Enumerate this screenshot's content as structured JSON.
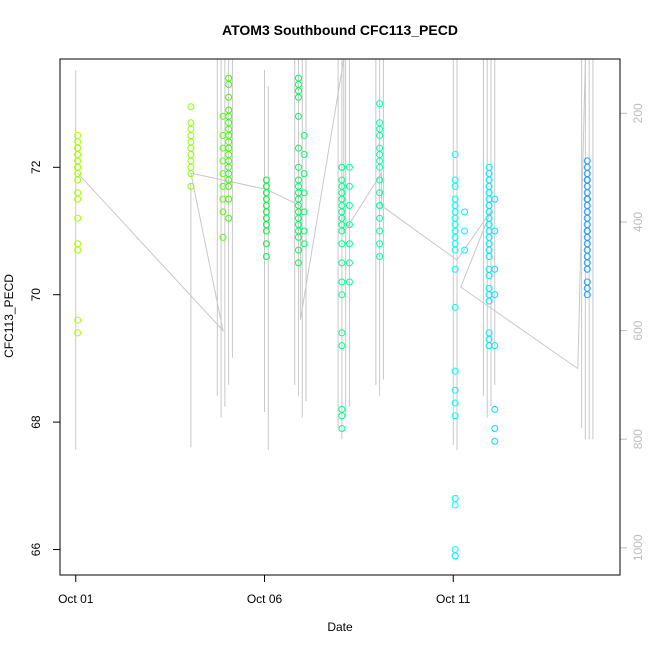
{
  "chart_data": {
    "type": "scatter",
    "title": "ATOM3 Southbound CFC113_PECD",
    "xlabel": "Date",
    "ylabel": "CFC113_PECD",
    "x_ticks": [
      "Oct 01",
      "Oct 06",
      "Oct 11"
    ],
    "y_ticks": [
      "66",
      "68",
      "70",
      "72"
    ],
    "right_ticks": [
      "200",
      "400",
      "600",
      "800",
      "1000"
    ],
    "xlim": [
      "Sep 30 14:00",
      "Oct 15 10:00"
    ],
    "ylim": [
      65.6,
      73.7
    ],
    "right_lim_inverted": [
      100,
      1050
    ],
    "right_axis_meaning": "pressure (inverted, grey)",
    "grid": false,
    "colors": {
      "point_start": "#a6ff00",
      "point_mid": "#00ff6e",
      "point_cyan": "#00ffff",
      "point_end": "#1ea0ff",
      "track": "#c8c8c8",
      "right_axis": "#bdbdbd"
    },
    "clusters": [
      {
        "x": 1.05,
        "color": "#a6ff00",
        "y": [
          72.5,
          72.4,
          72.3,
          72.3,
          72.2,
          72.2,
          72.1,
          72.1,
          72.0,
          72.0,
          71.9,
          71.8,
          71.6,
          71.5,
          71.2,
          70.8,
          70.7,
          69.6,
          69.4
        ]
      },
      {
        "x": 4.05,
        "color": "#8cff00",
        "y": [
          72.95,
          72.7,
          72.6,
          72.5,
          72.4,
          72.3,
          72.2,
          72.1,
          72.0,
          71.9,
          71.7
        ]
      },
      {
        "x": 4.9,
        "color": "#55ff00",
        "y": [
          72.8,
          72.5,
          72.3,
          72.1,
          71.9,
          71.7,
          71.5,
          71.3,
          70.9
        ]
      },
      {
        "x": 5.05,
        "color": "#3cff00",
        "y": [
          73.4,
          73.3,
          73.1,
          72.9,
          72.8,
          72.7,
          72.6,
          72.5,
          72.5,
          72.4,
          72.3,
          72.2,
          72.1,
          72.0,
          71.9,
          71.8,
          71.7,
          71.5,
          71.2
        ]
      },
      {
        "x": 6.05,
        "color": "#00ff3c",
        "y": [
          71.8,
          71.7,
          71.6,
          71.5,
          71.4,
          71.3,
          71.2,
          71.1,
          71.0,
          70.8,
          70.6
        ]
      },
      {
        "x": 6.9,
        "color": "#00ff5a",
        "y": [
          73.4,
          73.3,
          73.2,
          73.1,
          72.8,
          72.3,
          72.0,
          71.8,
          71.7,
          71.6,
          71.5,
          71.4,
          71.3,
          71.2,
          71.1,
          71.0,
          70.9,
          70.7,
          70.5
        ]
      },
      {
        "x": 7.05,
        "color": "#00ff6e",
        "y": [
          72.5,
          72.2,
          71.9,
          71.6,
          71.3,
          71.0,
          70.8
        ]
      },
      {
        "x": 8.05,
        "color": "#00ff8c",
        "y": [
          72.0,
          72.0,
          71.8,
          71.7,
          71.6,
          71.5,
          71.4,
          71.3,
          71.2,
          71.1,
          71.0,
          70.8,
          70.5,
          70.2,
          70.0,
          69.4,
          69.2,
          68.2,
          68.1,
          67.9
        ]
      },
      {
        "x": 8.25,
        "color": "#00ff96",
        "y": [
          72.0,
          71.7,
          71.4,
          71.1,
          70.8,
          70.5,
          70.2
        ]
      },
      {
        "x": 9.05,
        "color": "#00ffaa",
        "y": [
          73.0,
          72.7,
          72.6,
          72.5,
          72.3,
          72.2,
          72.1,
          72.0,
          71.8,
          71.6,
          71.4,
          71.4,
          71.2,
          71.0,
          70.8,
          70.6
        ]
      },
      {
        "x": 11.05,
        "color": "#00ffff",
        "y": [
          72.2,
          71.8,
          71.7,
          71.5,
          71.4,
          71.3,
          71.2,
          71.1,
          71.0,
          70.9,
          70.8,
          70.7,
          70.4,
          69.8,
          68.8,
          68.5,
          68.3,
          68.1,
          66.8,
          66.8,
          66.7,
          66.0,
          65.9,
          65.9
        ]
      },
      {
        "x": 11.3,
        "color": "#00f5ff",
        "y": [
          71.3,
          71.0,
          70.7
        ]
      },
      {
        "x": 11.95,
        "color": "#00eaff",
        "y": [
          72.0,
          71.9,
          71.8,
          71.7,
          71.6,
          71.5,
          71.4,
          71.3,
          71.2,
          71.1,
          71.0,
          70.9,
          70.8,
          70.7,
          70.6,
          70.4,
          70.3,
          70.1,
          70.0,
          69.9,
          69.4,
          69.3,
          69.2
        ]
      },
      {
        "x": 12.1,
        "color": "#00e0ff",
        "y": [
          71.5,
          71.0,
          70.4,
          70.0,
          69.2,
          68.2,
          67.9,
          67.7
        ]
      },
      {
        "x": 14.55,
        "color": "#1ea0ff",
        "y": [
          72.1,
          72.0,
          71.9,
          71.8,
          71.8,
          71.7,
          71.6,
          71.5,
          71.5,
          71.4,
          71.3,
          71.2,
          71.1,
          71.0,
          71.0,
          70.9,
          70.8,
          70.7,
          70.6,
          70.5,
          70.4,
          70.2,
          70.1,
          70.0
        ]
      }
    ],
    "pressure_profiles": [
      {
        "x": 1.0,
        "top": 120,
        "bottom": 820
      },
      {
        "x": 4.05,
        "top": 330,
        "bottom": 815
      },
      {
        "x": 4.75,
        "top": 100,
        "bottom": 720
      },
      {
        "x": 4.85,
        "top": 100,
        "bottom": 760
      },
      {
        "x": 4.95,
        "top": 100,
        "bottom": 740
      },
      {
        "x": 5.05,
        "top": 100,
        "bottom": 700
      },
      {
        "x": 5.15,
        "top": 100,
        "bottom": 650
      },
      {
        "x": 6.0,
        "top": 120,
        "bottom": 750
      },
      {
        "x": 6.1,
        "top": 150,
        "bottom": 820
      },
      {
        "x": 6.8,
        "top": 100,
        "bottom": 700
      },
      {
        "x": 6.9,
        "top": 100,
        "bottom": 720
      },
      {
        "x": 7.0,
        "top": 100,
        "bottom": 760
      },
      {
        "x": 7.1,
        "top": 100,
        "bottom": 730
      },
      {
        "x": 7.95,
        "top": 100,
        "bottom": 780
      },
      {
        "x": 8.05,
        "top": 100,
        "bottom": 800
      },
      {
        "x": 8.15,
        "top": 100,
        "bottom": 760
      },
      {
        "x": 8.25,
        "top": 100,
        "bottom": 740
      },
      {
        "x": 8.95,
        "top": 100,
        "bottom": 700
      },
      {
        "x": 9.05,
        "top": 100,
        "bottom": 720
      },
      {
        "x": 9.15,
        "top": 100,
        "bottom": 690
      },
      {
        "x": 11.0,
        "top": 100,
        "bottom": 810
      },
      {
        "x": 11.1,
        "top": 100,
        "bottom": 820
      },
      {
        "x": 11.8,
        "top": 100,
        "bottom": 720
      },
      {
        "x": 11.9,
        "top": 100,
        "bottom": 760
      },
      {
        "x": 12.0,
        "top": 100,
        "bottom": 740
      },
      {
        "x": 12.1,
        "top": 100,
        "bottom": 700
      },
      {
        "x": 14.4,
        "top": 100,
        "bottom": 780
      },
      {
        "x": 14.5,
        "top": 100,
        "bottom": 800
      },
      {
        "x": 14.6,
        "top": 100,
        "bottom": 800
      },
      {
        "x": 14.7,
        "top": 100,
        "bottom": 800
      }
    ],
    "pressure_track": [
      [
        1.05,
        310
      ],
      [
        4.9,
        600
      ],
      [
        4.05,
        310
      ],
      [
        6.05,
        340
      ],
      [
        6.95,
        370
      ],
      [
        6.95,
        580
      ],
      [
        8.1,
        100
      ],
      [
        8.1,
        420
      ],
      [
        9.1,
        310
      ],
      [
        9.1,
        370
      ],
      [
        11.1,
        470
      ],
      [
        12.0,
        380
      ],
      [
        11.2,
        520
      ],
      [
        14.3,
        670
      ],
      [
        14.5,
        100
      ]
    ]
  }
}
